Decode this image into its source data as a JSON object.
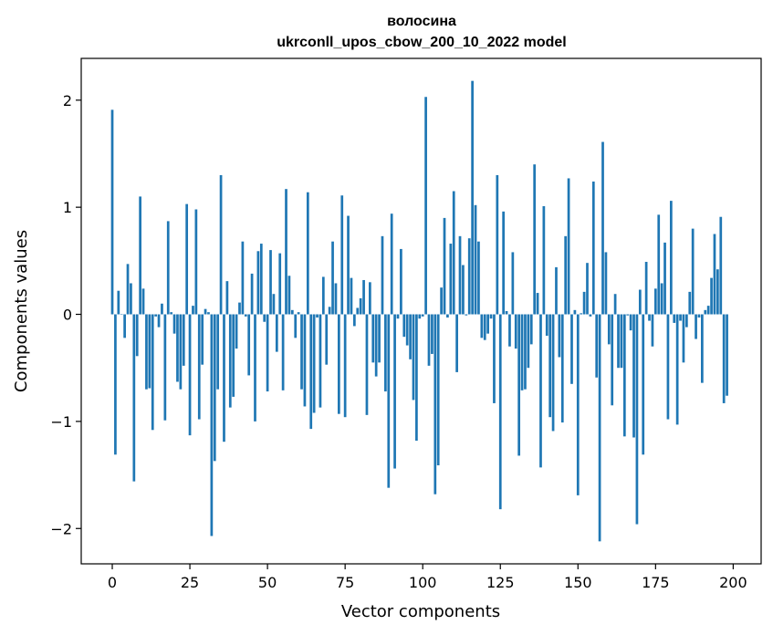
{
  "chart_data": {
    "type": "bar",
    "title_line1": "волосина",
    "title_line2": "ukrconll_upos_cbow_200_10_2022 model",
    "xlabel": "Vector components",
    "ylabel": "Components values",
    "xlim": [
      -10,
      209
    ],
    "ylim": [
      -2.33,
      2.39
    ],
    "xticks": [
      0,
      25,
      50,
      75,
      100,
      125,
      150,
      175,
      200
    ],
    "yticks": [
      -2,
      -1,
      0,
      1,
      2
    ],
    "ytick_labels": [
      "−2",
      "−1",
      "0",
      "1",
      "2"
    ],
    "grid": false,
    "bar_color": "#1f77b4",
    "values": [
      1.91,
      -1.31,
      0.22,
      0.0,
      -0.22,
      0.47,
      0.29,
      -1.56,
      -0.39,
      1.1,
      0.24,
      -0.7,
      -0.69,
      -1.08,
      -0.02,
      -0.12,
      0.1,
      -0.99,
      0.87,
      0.02,
      -0.18,
      -0.63,
      -0.7,
      -0.48,
      1.03,
      -1.13,
      0.08,
      0.98,
      -0.98,
      -0.47,
      0.05,
      0.02,
      -2.07,
      -1.37,
      -0.7,
      1.3,
      -1.19,
      0.31,
      -0.87,
      -0.77,
      -0.32,
      0.11,
      0.68,
      -0.02,
      -0.57,
      0.38,
      -1.0,
      0.59,
      0.66,
      -0.07,
      -0.72,
      0.6,
      0.19,
      -0.35,
      0.57,
      -0.71,
      1.17,
      0.36,
      0.04,
      -0.22,
      0.02,
      -0.7,
      -0.86,
      1.14,
      -1.07,
      -0.92,
      -0.03,
      -0.87,
      0.35,
      -0.47,
      0.07,
      0.68,
      0.29,
      -0.93,
      1.11,
      -0.96,
      0.92,
      0.34,
      -0.11,
      0.06,
      0.15,
      0.32,
      -0.94,
      0.3,
      -0.45,
      -0.58,
      -0.45,
      0.73,
      -0.72,
      -1.62,
      0.94,
      -1.44,
      -0.04,
      0.61,
      -0.21,
      -0.29,
      -0.42,
      -0.8,
      -1.18,
      -0.04,
      -0.02,
      2.03,
      -0.48,
      -0.37,
      -1.68,
      -1.41,
      0.25,
      0.9,
      -0.03,
      0.66,
      1.15,
      -0.54,
      0.73,
      0.46,
      -0.01,
      0.71,
      2.18,
      1.02,
      0.68,
      -0.22,
      -0.24,
      -0.18,
      -0.04,
      -0.83,
      1.3,
      -1.82,
      0.96,
      0.03,
      -0.3,
      0.58,
      -0.32,
      -1.32,
      -0.71,
      -0.7,
      -0.5,
      -0.28,
      1.4,
      0.2,
      -1.43,
      1.01,
      -0.2,
      -0.96,
      -1.09,
      0.44,
      -0.4,
      -1.01,
      0.73,
      1.27,
      -0.65,
      0.04,
      -1.69,
      0.01,
      0.21,
      0.48,
      -0.02,
      1.24,
      -0.59,
      -2.12,
      1.61,
      0.58,
      -0.28,
      -0.85,
      0.19,
      -0.5,
      -0.5,
      -1.14,
      -0.01,
      -0.15,
      -1.15,
      -1.96,
      0.23,
      -1.31,
      0.49,
      -0.06,
      -0.3,
      0.24,
      0.93,
      0.29,
      0.67,
      -0.98,
      1.06,
      -0.08,
      -1.03,
      -0.06,
      -0.45,
      -0.12,
      0.21,
      0.8,
      -0.23,
      -0.03,
      -0.64,
      0.04,
      0.08,
      0.34,
      0.75,
      0.42,
      0.91,
      -0.83,
      -0.76
    ]
  }
}
